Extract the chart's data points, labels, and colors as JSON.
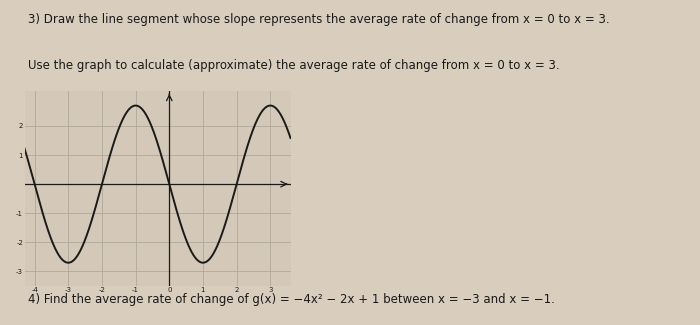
{
  "text3_line1": "3) Draw the line segment whose slope represents the average rate of change from x = 0 to x = 3.",
  "text3_line2": "Use the graph to calculate (approximate) the average rate of change from x = 0 to x = 3.",
  "text4": "4) Find the average rate of change of g(x) = −4x² − 2x + 1 between x = −3 and x = −1.",
  "graph_xlim": [
    -4.3,
    3.6
  ],
  "graph_ylim": [
    -3.5,
    3.2
  ],
  "curve_color": "#1a1a1a",
  "grid_color": "#b0a898",
  "axis_color": "#1a1a1a",
  "bg_color": "#d4c9b8",
  "paper_color": "#d9cebe",
  "text_color": "#1a1a1a",
  "font_size_text": 8.5,
  "font_size_tick": 5.0
}
